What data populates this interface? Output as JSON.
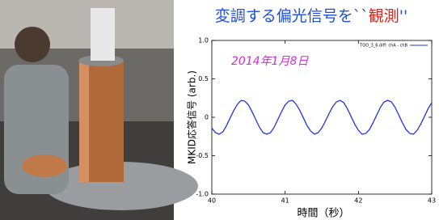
{
  "chart_data": {
    "type": "line",
    "title_parts": [
      {
        "text": "変調する偏光信号を``",
        "color": "#1f4fd6"
      },
      {
        "text": "観測",
        "color": "#e0201a"
      },
      {
        "text": "''",
        "color": "#1f4fd6"
      }
    ],
    "annotation": {
      "text": "2014年1月8日",
      "color": "#cc33cc"
    },
    "xlabel": "時間（秒）",
    "ylabel": "MKID応答信号 (arb.)",
    "x": [
      40,
      40.05,
      40.1,
      40.15,
      40.2,
      40.25,
      40.3,
      40.35,
      40.4,
      40.45,
      40.5,
      40.55,
      40.6,
      40.65,
      40.7,
      40.75,
      40.8,
      40.85,
      40.9,
      40.95,
      41,
      41.05,
      41.1,
      41.15,
      41.2,
      41.25,
      41.3,
      41.35,
      41.4,
      41.45,
      41.5,
      41.55,
      41.6,
      41.65,
      41.7,
      41.75,
      41.8,
      41.85,
      41.9,
      41.95,
      42,
      42.05,
      42.1,
      42.15,
      42.2,
      42.25,
      42.3,
      42.35,
      42.4,
      42.45,
      42.5,
      42.55,
      42.6,
      42.65,
      42.7,
      42.75,
      42.8,
      42.85,
      42.9,
      42.95,
      43
    ],
    "series": [
      {
        "name": "TOD_3_6.diff: chA - chB",
        "color": "#2233dd",
        "values": [
          -0.14,
          -0.2,
          -0.22,
          -0.19,
          -0.11,
          -0.01,
          0.09,
          0.17,
          0.22,
          0.21,
          0.16,
          0.07,
          -0.03,
          -0.13,
          -0.2,
          -0.22,
          -0.2,
          -0.13,
          -0.03,
          0.07,
          0.16,
          0.21,
          0.22,
          0.17,
          0.09,
          -0.01,
          -0.11,
          -0.18,
          -0.22,
          -0.2,
          -0.14,
          -0.05,
          0.05,
          0.14,
          0.2,
          0.22,
          0.19,
          0.11,
          0.01,
          -0.09,
          -0.17,
          -0.22,
          -0.21,
          -0.16,
          -0.07,
          0.03,
          0.13,
          0.2,
          0.22,
          0.2,
          0.13,
          0.03,
          -0.07,
          -0.16,
          -0.21,
          -0.22,
          -0.17,
          -0.09,
          0.01,
          0.11,
          0.19
        ]
      }
    ],
    "xlim": [
      40,
      43
    ],
    "xticks": [
      40,
      41,
      42,
      43
    ],
    "ylim": [
      -1,
      1
    ],
    "yticks": [
      {
        "value": -1,
        "label": "-1.0"
      },
      -0.5,
      0,
      0.5,
      {
        "value": 1,
        "label": "1.0"
      }
    ],
    "legend": "upper right"
  }
}
